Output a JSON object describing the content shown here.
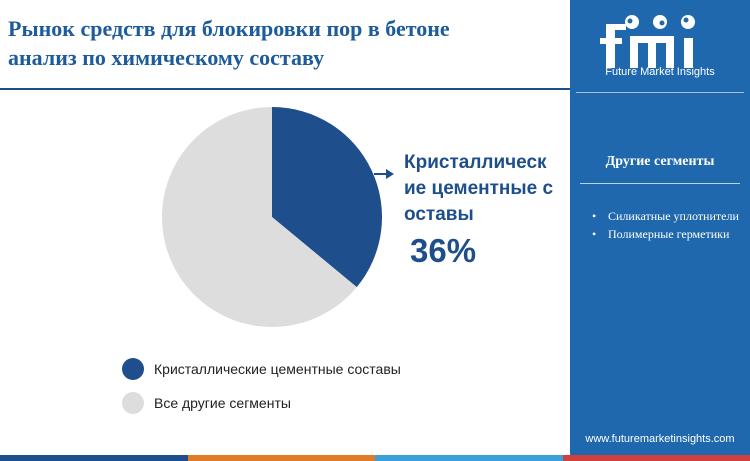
{
  "header": {
    "title_line1": "Рынок средств для блокировки пор в бетоне",
    "title_line2": "анализ по химическому составу"
  },
  "chart_data": {
    "type": "pie",
    "slices": [
      {
        "label": "Кристаллические цементные составы",
        "value": 36,
        "color": "#1f4e8c"
      },
      {
        "label": "Все другие сегменты",
        "value": 64,
        "color": "#dddddd"
      }
    ],
    "callout": {
      "label": "Кристаллические цементные составы",
      "value_text": "36%"
    },
    "legend": [
      "Кристаллические цементные составы",
      "Все другие сегменты"
    ]
  },
  "sidebar": {
    "logo_text": "Future Market Insights",
    "heading": "Другие сегменты",
    "items": [
      "Силикатные уплотнители",
      "Полимерные герметики"
    ],
    "website": "www.futuremarketinsights.com"
  },
  "colors": {
    "brand_blue": "#1f68ad",
    "dark_blue": "#1f4e8c",
    "light_grey": "#dddddd",
    "accent_bar": [
      "#1f4e8c",
      "#e07b26",
      "#3aa0d8",
      "#d23f3f"
    ]
  }
}
